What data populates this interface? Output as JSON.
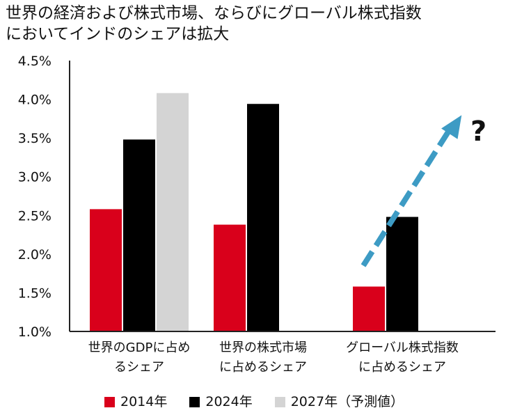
{
  "title_lines": [
    "世界の経済および株式市場、ならびにグローバル株式指数",
    "においてインドのシェアは拡大"
  ],
  "annotation": "?",
  "chart_data": {
    "type": "bar",
    "title": "世界の経済および株式市場、ならびにグローバル株式指数においてインドのシェアは拡大",
    "categories": [
      [
        "世界のGDPに占め",
        "るシェア"
      ],
      [
        "世界の株式市場",
        "に占めるシェア"
      ],
      [
        "グローバル株式指数",
        "に占めるシェア"
      ]
    ],
    "series": [
      {
        "name": "2014年",
        "color": "#d9001b",
        "values": [
          2.58,
          2.38,
          1.58
        ]
      },
      {
        "name": "2024年",
        "color": "#000000",
        "values": [
          3.48,
          3.94,
          2.48
        ]
      },
      {
        "name": "2027年（予測値）",
        "color": "#d4d4d4",
        "values": [
          4.08,
          null,
          null
        ]
      }
    ],
    "ylim": [
      1.0,
      4.5
    ],
    "yticks": [
      "1.0%",
      "1.5%",
      "2.0%",
      "2.5%",
      "3.0%",
      "3.5%",
      "4.0%",
      "4.5%"
    ],
    "ytick_values": [
      1.0,
      1.5,
      2.0,
      2.5,
      3.0,
      3.5,
      4.0,
      4.5
    ],
    "xlabel": "",
    "ylabel": "",
    "grid": false,
    "trend_arrow": {
      "category_index": 2,
      "from_value": 1.85,
      "to_value": 3.75,
      "color": "#3d9bc4"
    }
  }
}
